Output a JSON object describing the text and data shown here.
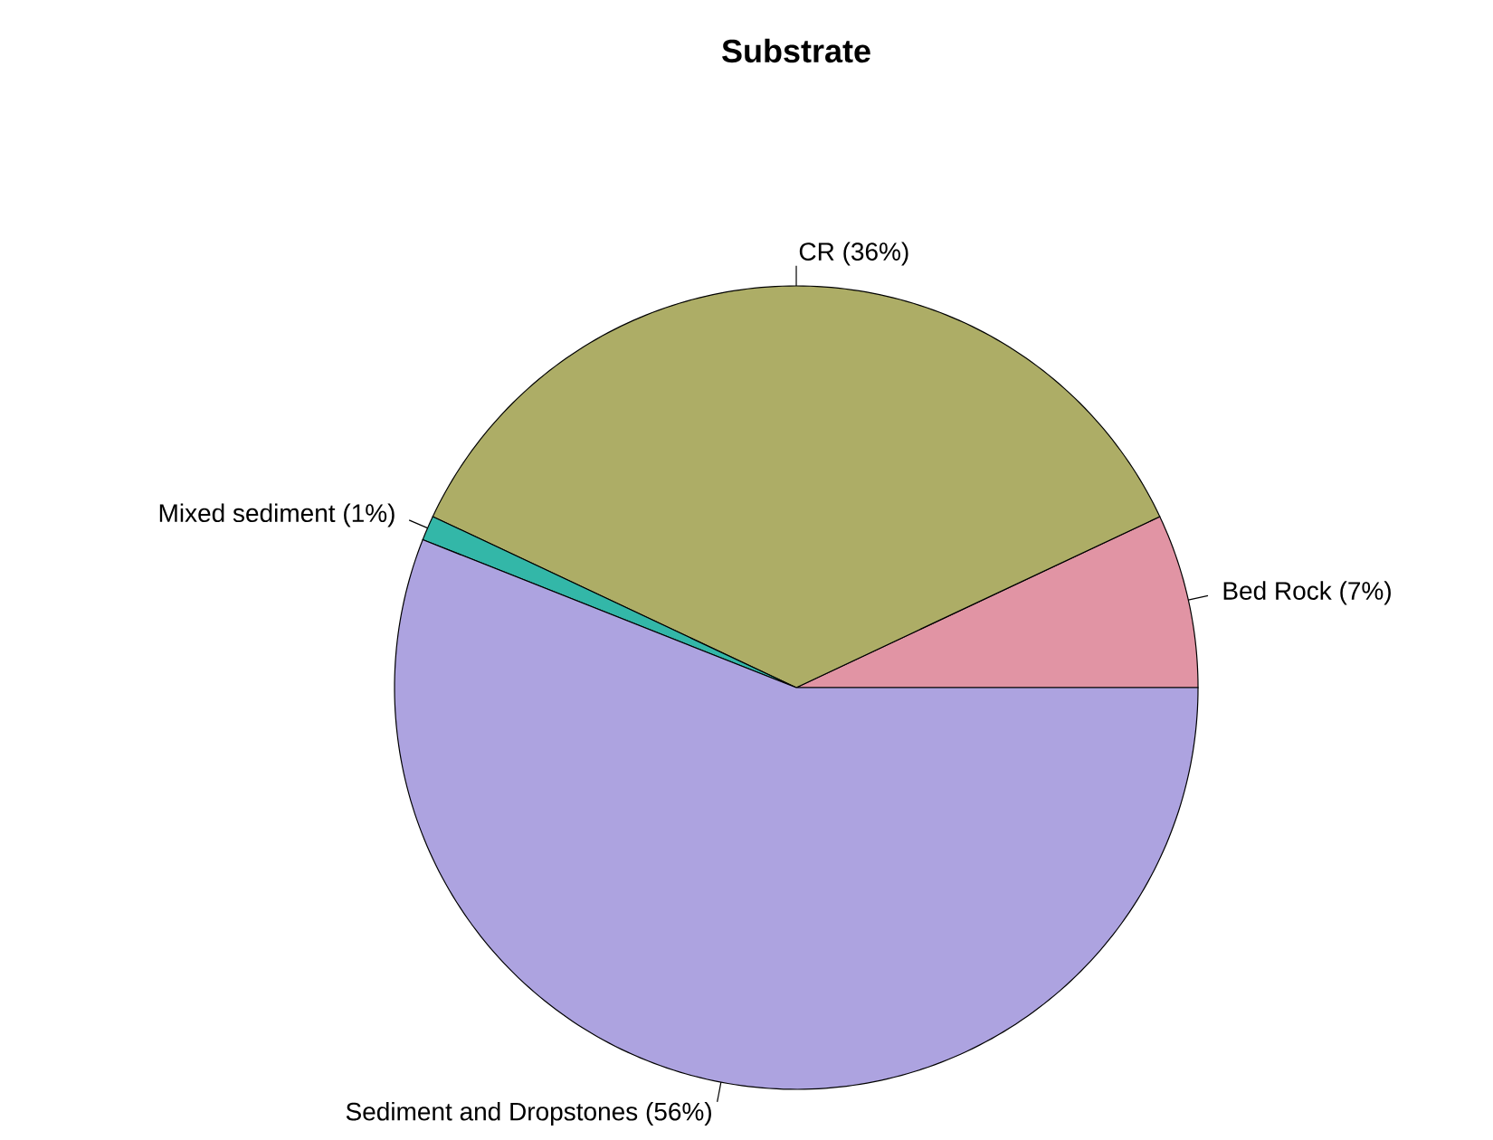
{
  "chart_data": {
    "type": "pie",
    "title": "Substrate",
    "categories": [
      "Bed Rock (7%)",
      "CR (36%)",
      "Mixed sediment (1%)",
      "Sediment and Dropstones (56%)"
    ],
    "values": [
      7,
      36,
      1,
      56
    ],
    "colors": [
      "#e194a4",
      "#adad66",
      "#33b7a8",
      "#ada3e0"
    ]
  }
}
